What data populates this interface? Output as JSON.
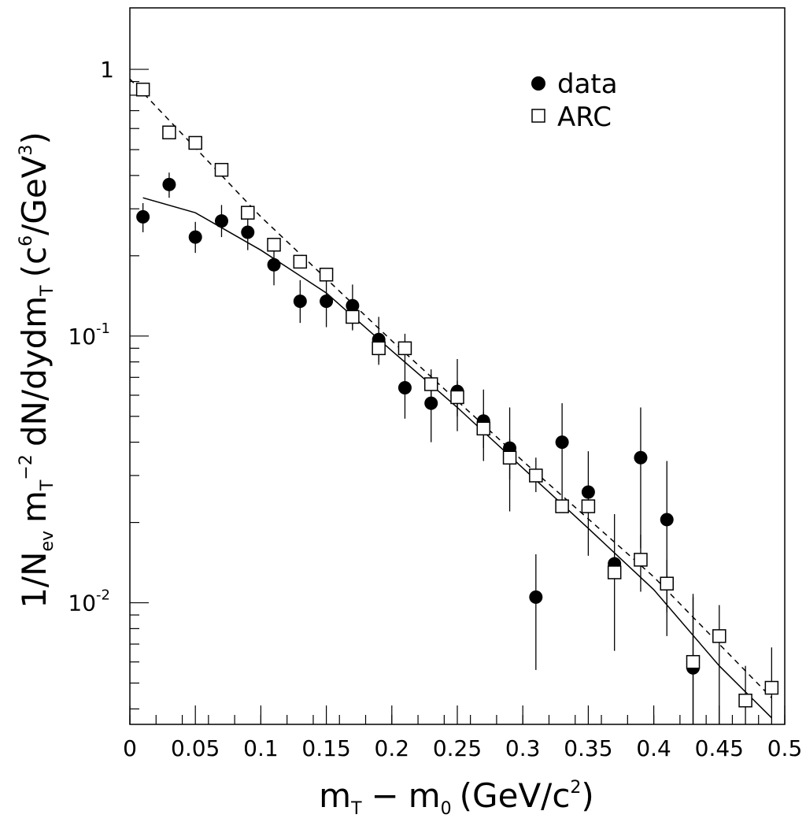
{
  "chart_data": {
    "type": "scatter",
    "title": "",
    "xlabel": {
      "m": "m",
      "sub_t": "T",
      "minus": "−",
      "m2": "m",
      "sub_0": "0",
      "unit_open": "(GeV/c",
      "unit_sup": "2",
      "unit_close": ")"
    },
    "ylabel": {
      "one_over": "1/N",
      "sub_ev": "ev",
      "m": "m",
      "sub_t1": "T",
      "sup_m2": "−2",
      "dn": "dN/dydm",
      "sub_t2": "T",
      "unit_open": "(c",
      "unit_sup6": "6",
      "unit_mid": "/GeV",
      "unit_sup3": "3",
      "unit_close": ")"
    },
    "xlim": [
      0,
      0.5
    ],
    "ylim": [
      0.0035,
      1.7
    ],
    "yscale": "log",
    "x_tick_labels": [
      "0",
      "0.05",
      "0.1",
      "0.15",
      "0.2",
      "0.25",
      "0.3",
      "0.35",
      "0.4",
      "0.45",
      "0.5"
    ],
    "x_ticks": [
      0,
      0.05,
      0.1,
      0.15,
      0.2,
      0.25,
      0.3,
      0.35,
      0.4,
      0.45,
      0.5
    ],
    "y_tick_labels": [
      {
        "value": 1,
        "base": "1",
        "exp": ""
      },
      {
        "value": 0.1,
        "base": "10",
        "exp": "-1"
      },
      {
        "value": 0.01,
        "base": "10",
        "exp": "-2"
      }
    ],
    "legend": {
      "position": "top-right",
      "entries": [
        {
          "name": "data",
          "marker": "filled-circle"
        },
        {
          "name": "ARC",
          "marker": "open-square"
        }
      ]
    },
    "series": [
      {
        "name": "data",
        "marker": "filled-circle",
        "points": [
          {
            "x": 0.01,
            "y": 0.28,
            "lo": 0.245,
            "hi": 0.315
          },
          {
            "x": 0.03,
            "y": 0.37,
            "lo": 0.33,
            "hi": 0.41
          },
          {
            "x": 0.05,
            "y": 0.235,
            "lo": 0.205,
            "hi": 0.268
          },
          {
            "x": 0.07,
            "y": 0.27,
            "lo": 0.235,
            "hi": 0.31
          },
          {
            "x": 0.09,
            "y": 0.245,
            "lo": 0.21,
            "hi": 0.285
          },
          {
            "x": 0.11,
            "y": 0.185,
            "lo": 0.155,
            "hi": 0.22
          },
          {
            "x": 0.13,
            "y": 0.135,
            "lo": 0.112,
            "hi": 0.162
          },
          {
            "x": 0.15,
            "y": 0.135,
            "lo": 0.108,
            "hi": 0.168
          },
          {
            "x": 0.17,
            "y": 0.13,
            "lo": 0.106,
            "hi": 0.156
          },
          {
            "x": 0.19,
            "y": 0.097,
            "lo": 0.078,
            "hi": 0.118
          },
          {
            "x": 0.21,
            "y": 0.064,
            "lo": 0.049,
            "hi": 0.081
          },
          {
            "x": 0.23,
            "y": 0.056,
            "lo": 0.04,
            "hi": 0.072
          },
          {
            "x": 0.25,
            "y": 0.062,
            "lo": 0.044,
            "hi": 0.082
          },
          {
            "x": 0.27,
            "y": 0.048,
            "lo": 0.034,
            "hi": 0.063
          },
          {
            "x": 0.29,
            "y": 0.038,
            "lo": 0.022,
            "hi": 0.054
          },
          {
            "x": 0.31,
            "y": 0.0105,
            "lo": 0.0056,
            "hi": 0.0152
          },
          {
            "x": 0.33,
            "y": 0.04,
            "lo": 0.024,
            "hi": 0.056
          },
          {
            "x": 0.35,
            "y": 0.026,
            "lo": 0.015,
            "hi": 0.037
          },
          {
            "x": 0.37,
            "y": 0.014,
            "lo": 0.0066,
            "hi": 0.0215
          },
          {
            "x": 0.39,
            "y": 0.035,
            "lo": 0.016,
            "hi": 0.054
          },
          {
            "x": 0.41,
            "y": 0.0205,
            "lo": 0.0075,
            "hi": 0.034
          },
          {
            "x": 0.43,
            "y": 0.0057,
            "lo": 0.0035,
            "hi": 0.0108
          }
        ]
      },
      {
        "name": "ARC",
        "marker": "open-square",
        "points": [
          {
            "x": 0.01,
            "y": 0.84,
            "lo": 0.84,
            "hi": 0.84
          },
          {
            "x": 0.03,
            "y": 0.58,
            "lo": 0.58,
            "hi": 0.58
          },
          {
            "x": 0.05,
            "y": 0.53,
            "lo": 0.53,
            "hi": 0.53
          },
          {
            "x": 0.07,
            "y": 0.42,
            "lo": 0.42,
            "hi": 0.42
          },
          {
            "x": 0.09,
            "y": 0.29,
            "lo": 0.29,
            "hi": 0.29
          },
          {
            "x": 0.11,
            "y": 0.22,
            "lo": 0.22,
            "hi": 0.22
          },
          {
            "x": 0.13,
            "y": 0.19,
            "lo": 0.19,
            "hi": 0.19
          },
          {
            "x": 0.15,
            "y": 0.17,
            "lo": 0.17,
            "hi": 0.17
          },
          {
            "x": 0.17,
            "y": 0.118,
            "lo": 0.105,
            "hi": 0.13
          },
          {
            "x": 0.19,
            "y": 0.09,
            "lo": 0.08,
            "hi": 0.1
          },
          {
            "x": 0.21,
            "y": 0.09,
            "lo": 0.079,
            "hi": 0.102
          },
          {
            "x": 0.23,
            "y": 0.066,
            "lo": 0.058,
            "hi": 0.075
          },
          {
            "x": 0.25,
            "y": 0.059,
            "lo": 0.05,
            "hi": 0.068
          },
          {
            "x": 0.27,
            "y": 0.045,
            "lo": 0.038,
            "hi": 0.052
          },
          {
            "x": 0.29,
            "y": 0.035,
            "lo": 0.029,
            "hi": 0.041
          },
          {
            "x": 0.31,
            "y": 0.03,
            "lo": 0.026,
            "hi": 0.035
          },
          {
            "x": 0.33,
            "y": 0.023,
            "lo": 0.023,
            "hi": 0.023
          },
          {
            "x": 0.35,
            "y": 0.023,
            "lo": 0.023,
            "hi": 0.023
          },
          {
            "x": 0.37,
            "y": 0.013,
            "lo": 0.013,
            "hi": 0.013
          },
          {
            "x": 0.39,
            "y": 0.0145,
            "lo": 0.011,
            "hi": 0.018
          },
          {
            "x": 0.41,
            "y": 0.0118,
            "lo": 0.0092,
            "hi": 0.0145
          },
          {
            "x": 0.43,
            "y": 0.006,
            "lo": 0.0035,
            "hi": 0.0105
          },
          {
            "x": 0.45,
            "y": 0.0075,
            "lo": 0.0035,
            "hi": 0.0098
          },
          {
            "x": 0.47,
            "y": 0.0043,
            "lo": 0.0035,
            "hi": 0.0058
          },
          {
            "x": 0.49,
            "y": 0.0048,
            "lo": 0.0035,
            "hi": 0.0068
          }
        ]
      }
    ],
    "curves": [
      {
        "style": "solid",
        "points": [
          [
            0.01,
            0.33
          ],
          [
            0.05,
            0.29
          ],
          [
            0.1,
            0.21
          ],
          [
            0.15,
            0.145
          ],
          [
            0.2,
            0.088
          ],
          [
            0.25,
            0.054
          ],
          [
            0.3,
            0.032
          ],
          [
            0.35,
            0.019
          ],
          [
            0.4,
            0.0112
          ],
          [
            0.45,
            0.0058
          ],
          [
            0.49,
            0.0037
          ]
        ]
      },
      {
        "style": "dashed",
        "points": [
          [
            0.0,
            0.92
          ],
          [
            0.1,
            0.28
          ],
          [
            0.2,
            0.096
          ],
          [
            0.3,
            0.034
          ],
          [
            0.4,
            0.0125
          ],
          [
            0.49,
            0.0044
          ]
        ]
      }
    ]
  }
}
